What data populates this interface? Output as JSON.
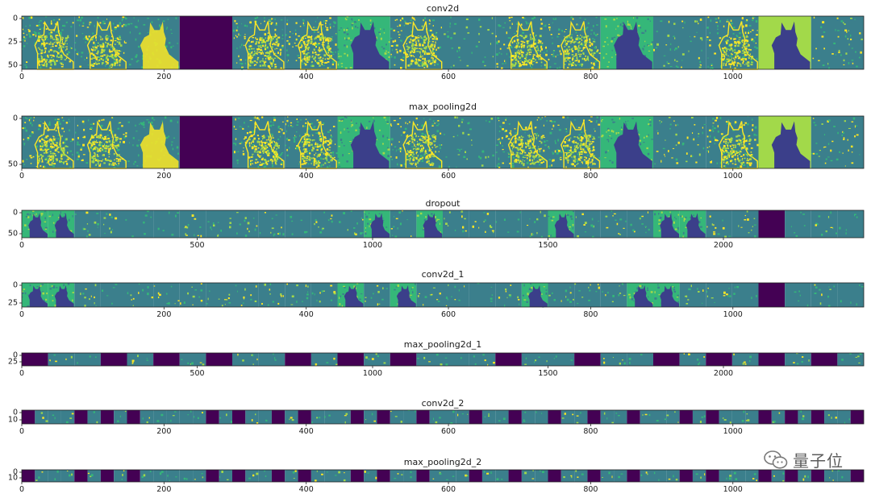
{
  "colors": {
    "dark": "#440154",
    "mid": "#3b7f8c",
    "green": "#35b779",
    "yellow": "#fde725",
    "lime": "#a2d94a"
  },
  "chart_data": [
    {
      "type": "heatmap",
      "title": "conv2d",
      "xlim": [
        0,
        1184
      ],
      "xticks": [
        0,
        200,
        400,
        600,
        800,
        1000
      ],
      "yticks": [
        0,
        25,
        50
      ],
      "tile_count": 16,
      "tiles": [
        "cat-yellow",
        "cat-yellow",
        "cat-bright",
        "dark",
        "cat-yellow",
        "cat-yellow",
        "cat-inverse",
        "cat-yellow",
        "cat-faint",
        "cat-yellow",
        "cat-yellow",
        "cat-inverse",
        "cat-sparse",
        "cat-yellow",
        "cat-inverse-bright",
        "cat-sparse"
      ]
    },
    {
      "type": "heatmap",
      "title": "max_pooling2d",
      "xlim": [
        0,
        1184
      ],
      "xticks": [
        0,
        200,
        400,
        600,
        800,
        1000
      ],
      "yticks": [
        0,
        50
      ],
      "tile_count": 16,
      "tiles": [
        "cat-yellow",
        "cat-yellow",
        "cat-bright",
        "dark",
        "cat-yellow",
        "cat-yellow",
        "cat-inverse",
        "cat-yellow",
        "cat-faint",
        "cat-yellow",
        "cat-yellow",
        "cat-inverse",
        "cat-sparse",
        "cat-yellow",
        "cat-inverse-bright",
        "cat-sparse"
      ]
    },
    {
      "type": "heatmap",
      "title": "dropout",
      "xlim": [
        0,
        2400
      ],
      "xticks": [
        0,
        500,
        1000,
        1500,
        2000
      ],
      "yticks": [
        0,
        50
      ],
      "tile_count": 32,
      "tiles": [
        "cat-inverse",
        "cat-inverse",
        "sparse",
        "sparse",
        "faint",
        "faint",
        "sparse",
        "sparse",
        "sparse",
        "sparse",
        "faint",
        "sparse",
        "sparse",
        "cat-inverse",
        "sparse",
        "cat-inverse",
        "sparse",
        "sparse",
        "faint",
        "sparse",
        "cat-inverse",
        "sparse",
        "sparse",
        "sparse",
        "cat-inverse",
        "cat-inverse",
        "sparse",
        "sparse",
        "dark",
        "faint",
        "sparse",
        "faint"
      ]
    },
    {
      "type": "heatmap",
      "title": "conv2d_1",
      "xlim": [
        0,
        1184
      ],
      "xticks": [
        0,
        200,
        400,
        600,
        800,
        1000
      ],
      "yticks": [
        0,
        25
      ],
      "tile_count": 32,
      "tiles": [
        "cat-inverse",
        "cat-inverse",
        "sparse",
        "faint",
        "sparse",
        "sparse",
        "sparse",
        "sparse",
        "sparse",
        "sparse",
        "sparse",
        "sparse",
        "cat-inverse",
        "sparse",
        "cat-inverse",
        "sparse",
        "sparse",
        "faint",
        "sparse",
        "cat-inverse",
        "sparse",
        "sparse",
        "sparse",
        "cat-inverse",
        "cat-inverse",
        "sparse",
        "sparse",
        "faint",
        "dark",
        "faint",
        "sparse",
        "faint"
      ]
    },
    {
      "type": "heatmap",
      "title": "max_pooling2d_1",
      "xlim": [
        0,
        2400
      ],
      "xticks": [
        0,
        500,
        1000,
        1500,
        2000
      ],
      "yticks": [
        0,
        25
      ],
      "tile_count": 32,
      "tiles": [
        "dark",
        "sparse",
        "faint",
        "dark",
        "sparse",
        "dark",
        "sparse",
        "dark",
        "sparse",
        "faint",
        "dark",
        "sparse",
        "dark",
        "sparse",
        "dark",
        "sparse",
        "faint",
        "sparse",
        "dark",
        "sparse",
        "faint",
        "dark",
        "sparse",
        "faint",
        "dark",
        "sparse",
        "dark",
        "sparse",
        "dark",
        "sparse",
        "dark",
        "sparse"
      ]
    },
    {
      "type": "heatmap",
      "title": "conv2d_2",
      "xlim": [
        0,
        1184
      ],
      "xticks": [
        0,
        200,
        400,
        600,
        800,
        1000
      ],
      "yticks": [
        0,
        10
      ],
      "tile_count": 64,
      "tiles": [
        "dark",
        "sparse",
        "faint",
        "sparse",
        "dark",
        "sparse",
        "dark",
        "sparse",
        "dark",
        "sparse",
        "faint",
        "sparse",
        "faint",
        "sparse",
        "dark",
        "sparse",
        "dark",
        "sparse",
        "faint",
        "dark",
        "sparse",
        "dark",
        "sparse",
        "faint",
        "sparse",
        "dark",
        "sparse",
        "dark",
        "sparse",
        "faint",
        "dark",
        "sparse",
        "faint",
        "sparse",
        "dark",
        "sparse",
        "faint",
        "dark",
        "sparse",
        "faint",
        "dark",
        "sparse",
        "sparse",
        "dark",
        "sparse",
        "faint",
        "dark",
        "sparse",
        "faint",
        "sparse",
        "dark",
        "sparse",
        "dark",
        "sparse",
        "faint",
        "sparse",
        "dark",
        "sparse",
        "dark",
        "sparse",
        "dark",
        "sparse",
        "faint",
        "dark"
      ]
    },
    {
      "type": "heatmap",
      "title": "max_pooling2d_2",
      "xlim": [
        0,
        1184
      ],
      "xticks": [
        0,
        200,
        400,
        600,
        800,
        1000
      ],
      "yticks": [
        0,
        10
      ],
      "tile_count": 64,
      "tiles": [
        "dark",
        "sparse",
        "faint",
        "sparse",
        "dark",
        "sparse",
        "dark",
        "sparse",
        "dark",
        "sparse",
        "faint",
        "sparse",
        "faint",
        "sparse",
        "dark",
        "sparse",
        "dark",
        "sparse",
        "faint",
        "dark",
        "sparse",
        "dark",
        "sparse",
        "faint",
        "sparse",
        "dark",
        "sparse",
        "dark",
        "sparse",
        "faint",
        "dark",
        "sparse",
        "faint",
        "sparse",
        "dark",
        "sparse",
        "faint",
        "dark",
        "sparse",
        "faint",
        "dark",
        "sparse",
        "sparse",
        "dark",
        "sparse",
        "faint",
        "dark",
        "sparse",
        "faint",
        "sparse",
        "dark",
        "sparse",
        "dark",
        "sparse",
        "faint",
        "sparse",
        "dark",
        "sparse",
        "dark",
        "sparse",
        "dark",
        "sparse",
        "faint",
        "dark"
      ]
    }
  ],
  "watermark": {
    "text": "量子位",
    "icon": "wechat-icon"
  }
}
